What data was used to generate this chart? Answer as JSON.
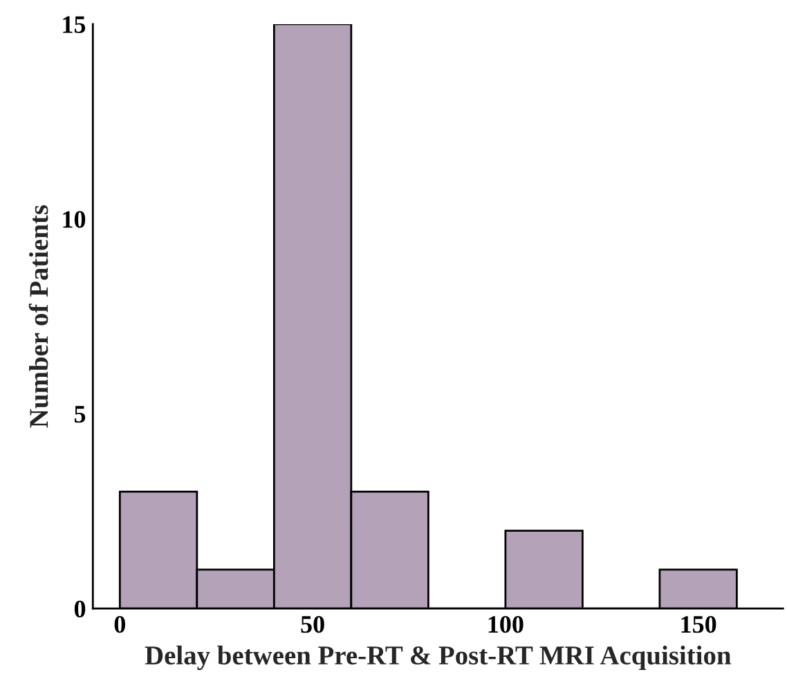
{
  "chart_data": {
    "type": "histogram",
    "xlabel": "Delay between Pre-RT & Post-RT MRI Acquisition",
    "ylabel": "Number of Patients",
    "bins": [
      0,
      20,
      40,
      60,
      80,
      100,
      120,
      140,
      160
    ],
    "values": [
      3,
      1,
      15,
      3,
      0,
      2,
      0,
      1
    ],
    "color": "#b3a2b8",
    "xlim": [
      -7,
      172
    ],
    "xticks": [
      0,
      50,
      100,
      150
    ],
    "ylim": [
      0,
      15
    ],
    "yticks": [
      0,
      5,
      10,
      15
    ],
    "grid": false
  }
}
